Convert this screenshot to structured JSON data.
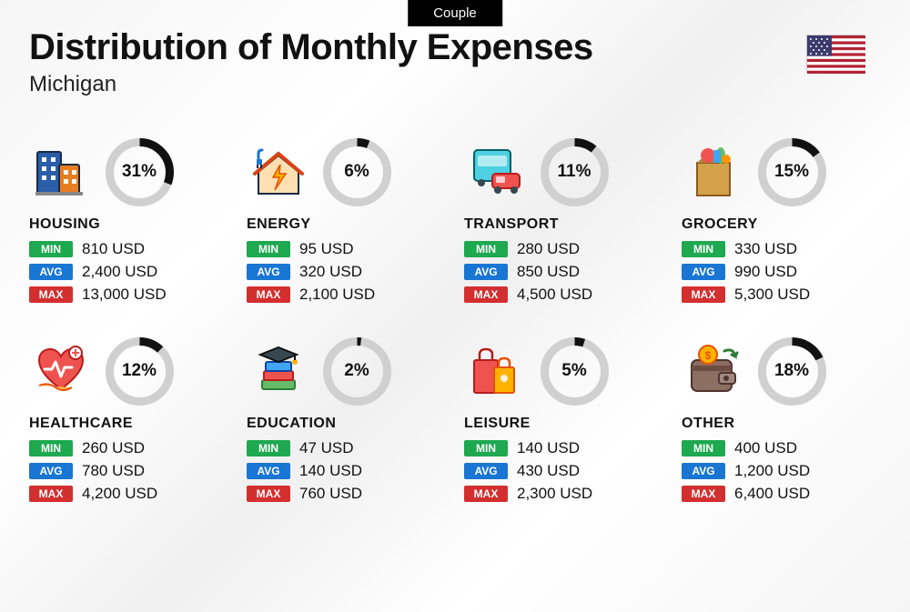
{
  "tag": "Couple",
  "title": "Distribution of Monthly Expenses",
  "subtitle": "Michigan",
  "currency": "USD",
  "labels": {
    "min": "MIN",
    "avg": "AVG",
    "max": "MAX"
  },
  "colors": {
    "min_badge": "#1ea850",
    "avg_badge": "#1976d2",
    "max_badge": "#d32f2f",
    "donut_fg": "#111111",
    "donut_bg": "#d0d0d0",
    "text": "#111111",
    "background": "#f5f5f5"
  },
  "donut": {
    "radius": 33,
    "stroke_width": 9
  },
  "flag": "usa",
  "categories": [
    {
      "key": "housing",
      "name": "HOUSING",
      "percent": 31,
      "min": "810",
      "avg": "2,400",
      "max": "13,000",
      "icon": "buildings"
    },
    {
      "key": "energy",
      "name": "ENERGY",
      "percent": 6,
      "min": "95",
      "avg": "320",
      "max": "2,100",
      "icon": "power-house"
    },
    {
      "key": "transport",
      "name": "TRANSPORT",
      "percent": 11,
      "min": "280",
      "avg": "850",
      "max": "4,500",
      "icon": "bus-car"
    },
    {
      "key": "grocery",
      "name": "GROCERY",
      "percent": 15,
      "min": "330",
      "avg": "990",
      "max": "5,300",
      "icon": "grocery-bag"
    },
    {
      "key": "healthcare",
      "name": "HEALTHCARE",
      "percent": 12,
      "min": "260",
      "avg": "780",
      "max": "4,200",
      "icon": "heart-care"
    },
    {
      "key": "education",
      "name": "EDUCATION",
      "percent": 2,
      "min": "47",
      "avg": "140",
      "max": "760",
      "icon": "grad-books"
    },
    {
      "key": "leisure",
      "name": "LEISURE",
      "percent": 5,
      "min": "140",
      "avg": "430",
      "max": "2,300",
      "icon": "shopping-bags"
    },
    {
      "key": "other",
      "name": "OTHER",
      "percent": 18,
      "min": "400",
      "avg": "1,200",
      "max": "6,400",
      "icon": "wallet"
    }
  ]
}
